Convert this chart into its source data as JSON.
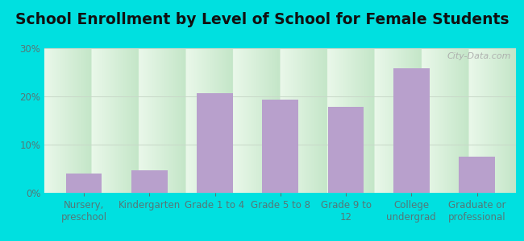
{
  "title": "School Enrollment by Level of School for Female Students",
  "categories": [
    "Nursery,\npreschool",
    "Kindergarten",
    "Grade 1 to 4",
    "Grade 5 to 8",
    "Grade 9 to\n12",
    "College\nundergrad",
    "Graduate or\nprofessional"
  ],
  "values": [
    4.0,
    4.7,
    20.7,
    19.3,
    17.8,
    25.8,
    7.5
  ],
  "bar_color": "#b8a0cc",
  "background_outer": "#00e0e0",
  "ylim": [
    0,
    30
  ],
  "yticks": [
    0,
    10,
    20,
    30
  ],
  "ytick_labels": [
    "0%",
    "10%",
    "20%",
    "30%"
  ],
  "title_fontsize": 13.5,
  "tick_label_fontsize": 8.5,
  "tick_color": "#557777",
  "grid_color": "#c8d8c8",
  "watermark_text": "City-Data.com",
  "watermark_color": "#aaaaaa",
  "bg_top": "#eaf5ea",
  "bg_bottom": "#c8e8d0"
}
